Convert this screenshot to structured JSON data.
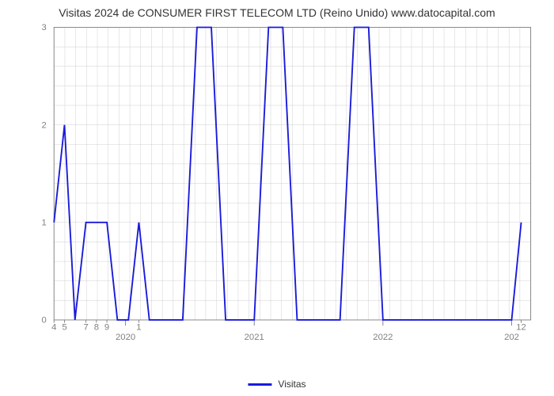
{
  "chart": {
    "type": "line",
    "title": "Visitas 2024 de CONSUMER FIRST TELECOM LTD (Reino Unido) www.datocapital.com",
    "title_fontsize": 14,
    "title_color": "#333333",
    "background_color": "#ffffff",
    "plot_border_color": "#808080",
    "grid_color": "#cccccc",
    "grid_width": 0.5,
    "line_color": "#1a1adb",
    "line_width": 2,
    "legend_label": "Visitas",
    "legend_position": "bottom-center",
    "y_axis": {
      "min": 0,
      "max": 3,
      "ticks": [
        0,
        1,
        2,
        3
      ],
      "tick_labels": [
        "0",
        "1",
        "2",
        "3"
      ],
      "label_fontsize": 12,
      "label_color": "#808080"
    },
    "x_axis": {
      "major_ticks": [
        {
          "pos": 0.15,
          "label": "2020"
        },
        {
          "pos": 0.42,
          "label": "2021"
        },
        {
          "pos": 0.69,
          "label": "2022"
        },
        {
          "pos": 0.96,
          "label": "202"
        }
      ],
      "minor_tick_labels": [
        {
          "pos": 0.0,
          "label": "4"
        },
        {
          "pos": 0.022,
          "label": "5"
        },
        {
          "pos": 0.067,
          "label": "7"
        },
        {
          "pos": 0.089,
          "label": "8"
        },
        {
          "pos": 0.111,
          "label": "9"
        },
        {
          "pos": 0.178,
          "label": "1"
        },
        {
          "pos": 0.98,
          "label": "12"
        }
      ],
      "label_fontsize": 12,
      "label_color": "#808080"
    },
    "data_points": [
      {
        "x": 0.0,
        "y": 1
      },
      {
        "x": 0.022,
        "y": 2
      },
      {
        "x": 0.044,
        "y": 0
      },
      {
        "x": 0.067,
        "y": 1
      },
      {
        "x": 0.089,
        "y": 1
      },
      {
        "x": 0.111,
        "y": 1
      },
      {
        "x": 0.133,
        "y": 0
      },
      {
        "x": 0.156,
        "y": 0
      },
      {
        "x": 0.178,
        "y": 1
      },
      {
        "x": 0.2,
        "y": 0
      },
      {
        "x": 0.222,
        "y": 0
      },
      {
        "x": 0.244,
        "y": 0
      },
      {
        "x": 0.27,
        "y": 0
      },
      {
        "x": 0.3,
        "y": 3
      },
      {
        "x": 0.33,
        "y": 3
      },
      {
        "x": 0.36,
        "y": 0
      },
      {
        "x": 0.39,
        "y": 0
      },
      {
        "x": 0.42,
        "y": 0
      },
      {
        "x": 0.45,
        "y": 3
      },
      {
        "x": 0.48,
        "y": 3
      },
      {
        "x": 0.51,
        "y": 0
      },
      {
        "x": 0.54,
        "y": 0
      },
      {
        "x": 0.57,
        "y": 0
      },
      {
        "x": 0.6,
        "y": 0
      },
      {
        "x": 0.63,
        "y": 3
      },
      {
        "x": 0.66,
        "y": 3
      },
      {
        "x": 0.69,
        "y": 0
      },
      {
        "x": 0.72,
        "y": 0
      },
      {
        "x": 0.75,
        "y": 0
      },
      {
        "x": 0.78,
        "y": 0
      },
      {
        "x": 0.81,
        "y": 0
      },
      {
        "x": 0.84,
        "y": 0
      },
      {
        "x": 0.87,
        "y": 0
      },
      {
        "x": 0.9,
        "y": 0
      },
      {
        "x": 0.93,
        "y": 0
      },
      {
        "x": 0.96,
        "y": 0
      },
      {
        "x": 0.98,
        "y": 1
      }
    ]
  }
}
